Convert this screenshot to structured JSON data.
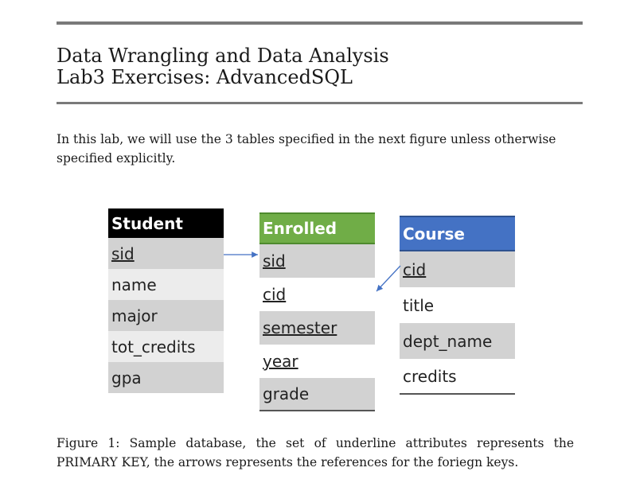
{
  "document": {
    "title_line1": "Data Wrangling and Data Analysis",
    "title_line2": "Lab3 Exercises: AdvancedSQL",
    "intro": "In this lab, we will use the 3 tables specified in the next figure unless otherwise specified explicitly.",
    "caption": "Figure 1: Sample database, the set of underline attributes represents the PRIMARY KEY, the arrows represents the references for the foriegn keys."
  },
  "tables": {
    "student": {
      "name": "Student",
      "header_color": "#000000",
      "rows": [
        "sid",
        "name",
        "major",
        "tot_credits",
        "gpa"
      ]
    },
    "enrolled": {
      "name": "Enrolled",
      "header_color": "#70ad47",
      "rows": [
        "sid",
        "cid",
        "semester",
        "year",
        "grade"
      ]
    },
    "course": {
      "name": "Course",
      "header_color": "#4472c4",
      "rows": [
        "cid",
        "title",
        "dept_name",
        "credits"
      ]
    }
  },
  "colors": {
    "arrow": "#4472c4",
    "rule": "#7a7a7a"
  }
}
